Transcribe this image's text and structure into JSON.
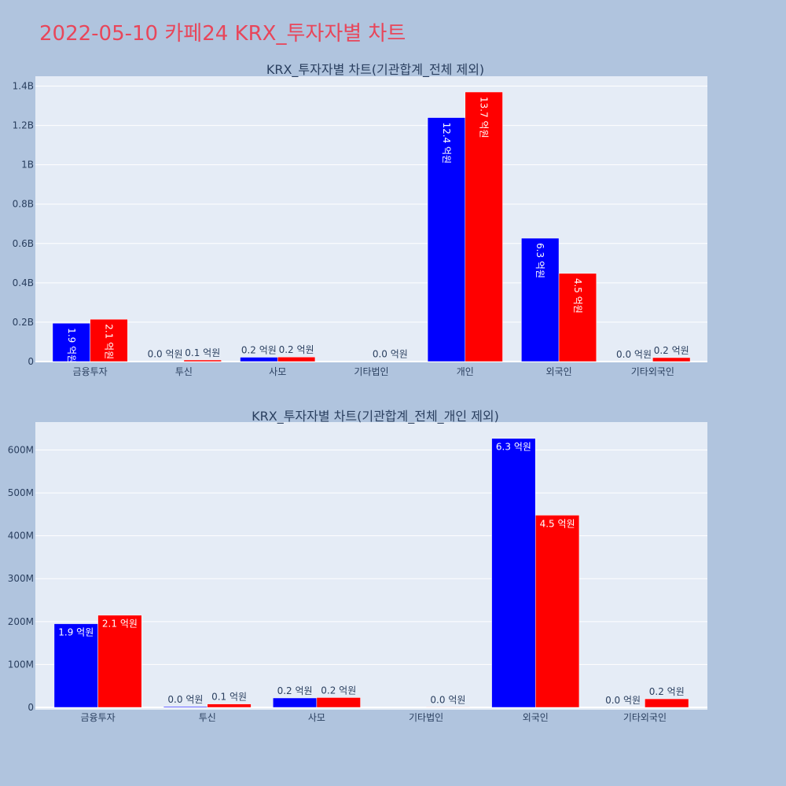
{
  "page_title": "2022-05-10 카페24 KRX_투자자별 차트",
  "colors": {
    "series_a": "#0000ff",
    "series_b": "#ff0000",
    "title": "#e8465a",
    "background": "#b0c4de",
    "plot_bg": "#e5ecf6"
  },
  "chart_data": [
    {
      "type": "bar",
      "title": "KRX_투자자별 차트(기관합계_전체 제외)",
      "categories": [
        "금융투자",
        "투신",
        "사모",
        "기타법인",
        "개인",
        "외국인",
        "기타외국인"
      ],
      "series": [
        {
          "values": [
            195000000,
            2000000,
            22000000,
            0,
            1240000000,
            627000000,
            0
          ],
          "labels": [
            "1.9 억원",
            "0.0 억원",
            "0.2 억원",
            "",
            "12.4 억원",
            "6.3 억원",
            "0.0 억원"
          ]
        },
        {
          "values": [
            215000000,
            8000000,
            23000000,
            1000000,
            1370000000,
            448000000,
            20000000
          ],
          "labels": [
            "2.1 억원",
            "0.1 억원",
            "0.2 억원",
            "0.0 억원",
            "13.7 억원",
            "4.5 억원",
            "0.2 억원"
          ]
        }
      ],
      "ylim": [
        0,
        1450000000
      ],
      "yticks": [
        {
          "value": 0,
          "label": "0"
        },
        {
          "value": 200000000,
          "label": "0.2B"
        },
        {
          "value": 400000000,
          "label": "0.4B"
        },
        {
          "value": 600000000,
          "label": "0.6B"
        },
        {
          "value": 800000000,
          "label": "0.8B"
        },
        {
          "value": 1000000000,
          "label": "1B"
        },
        {
          "value": 1200000000,
          "label": "1.2B"
        },
        {
          "value": 1400000000,
          "label": "1.4B"
        }
      ],
      "grid": true,
      "label_orientation": "vertical"
    },
    {
      "type": "bar",
      "title": "KRX_투자자별 차트(기관합계_전체_개인 제외)",
      "categories": [
        "금융투자",
        "투신",
        "사모",
        "기타법인",
        "외국인",
        "기타외국인"
      ],
      "series": [
        {
          "values": [
            195000000,
            2000000,
            22000000,
            0,
            627000000,
            0
          ],
          "labels": [
            "1.9 억원",
            "0.0 억원",
            "0.2 억원",
            "",
            "6.3 억원",
            "0.0 억원"
          ]
        },
        {
          "values": [
            215000000,
            8000000,
            23000000,
            1000000,
            448000000,
            20000000
          ],
          "labels": [
            "2.1 억원",
            "0.1 억원",
            "0.2 억원",
            "0.0 억원",
            "4.5 억원",
            "0.2 억원"
          ]
        }
      ],
      "ylim": [
        0,
        665000000
      ],
      "yticks": [
        {
          "value": 0,
          "label": "0"
        },
        {
          "value": 100000000,
          "label": "100M"
        },
        {
          "value": 200000000,
          "label": "200M"
        },
        {
          "value": 300000000,
          "label": "300M"
        },
        {
          "value": 400000000,
          "label": "400M"
        },
        {
          "value": 500000000,
          "label": "500M"
        },
        {
          "value": 600000000,
          "label": "600M"
        }
      ],
      "grid": true,
      "label_orientation": "horizontal"
    }
  ]
}
